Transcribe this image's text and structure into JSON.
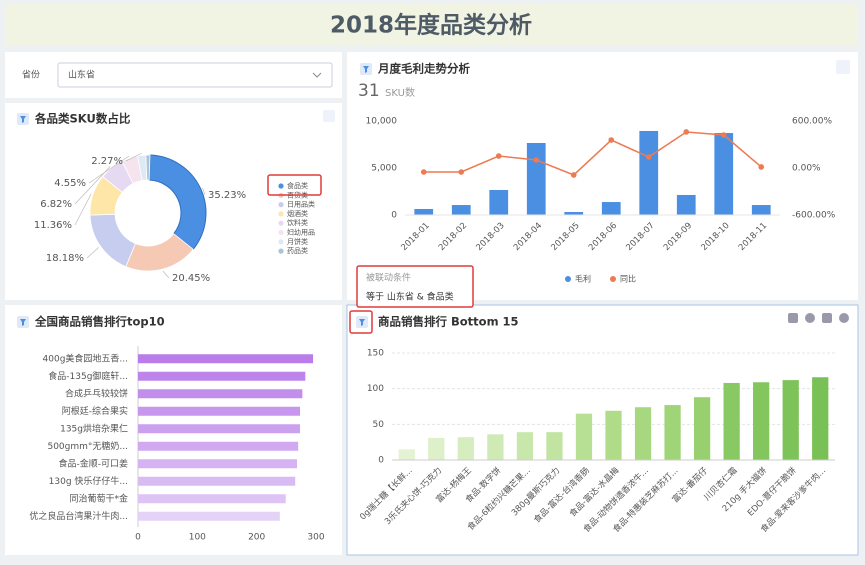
{
  "header": {
    "title": "2018年度品类分析"
  },
  "filter": {
    "label": "省份",
    "value": "山东省"
  },
  "kpi": {
    "value": "31",
    "label": "SKU数"
  },
  "linkage": {
    "title": "被联动条件",
    "text": "等于 山东省 & 食品类"
  },
  "chart_data": [
    {
      "type": "pie",
      "title": "各品类SKU数占比",
      "categories": [
        "食品类",
        "百货类",
        "日用品类",
        "烟酒类",
        "饮料类",
        "妇幼用品",
        "月饼类",
        "药品类"
      ],
      "values": [
        35.23,
        20.45,
        18.18,
        11.36,
        6.82,
        4.55,
        2.27,
        1.14
      ],
      "value_labels": [
        "35.23%",
        "20.45%",
        "18.18%",
        "11.36%",
        "6.82%",
        "4.55%",
        "2.27%",
        null
      ],
      "colors": [
        "#4a8fe2",
        "#f6c9b5",
        "#c6cdef",
        "#fde6a8",
        "#e6daf3",
        "#f5e4ee",
        "#dde9f5",
        "#a9c5d7"
      ]
    },
    {
      "type": "bar",
      "title": "月度毛利走势分析",
      "categories": [
        "2018-01",
        "2018-02",
        "2018-03",
        "2018-04",
        "2018-05",
        "2018-06",
        "2018-07",
        "2018-09",
        "2018-10",
        "2018-11"
      ],
      "series": [
        {
          "name": "毛利",
          "color": "#4a8fe2",
          "values": [
            640,
            1060,
            2660,
            7660,
            320,
            1380,
            8940,
            2130,
            8720,
            1060
          ]
        },
        {
          "name": "同比",
          "color": "#ec7a52",
          "type": "line",
          "axis": "y2",
          "values": [
            -51,
            -51,
            153,
            102,
            -89,
            357,
            140,
            460,
            421,
            13
          ]
        }
      ],
      "ylim": [
        0,
        10000
      ],
      "yticks": [
        0,
        {
          "value": 5000,
          "label": "5,000"
        },
        {
          "value": 10000,
          "label": "10,000"
        }
      ],
      "y2lim": [
        -600,
        600
      ],
      "y2ticks": [
        {
          "value": -600,
          "label": "-600.00%"
        },
        {
          "value": 0,
          "label": "0.00%"
        },
        {
          "value": 600,
          "label": "600.00%"
        }
      ],
      "grid": false
    },
    {
      "type": "hbar",
      "title": "全国商品销售排行top10",
      "categories": [
        "400g美食园地五香...",
        "食品-135g御庭轩...",
        "合成乒乓较较饼",
        "阿根廷-综合果实",
        "135g烘培杂果仁",
        "500gmm°无糖奶...",
        "食品-金顺-可口姜",
        "130g 快乐仔仔牛...",
        "同治葡萄干*金",
        "优之良品台湾果汁牛肉..."
      ],
      "values": [
        295,
        282,
        277,
        273,
        273,
        270,
        268,
        265,
        249,
        239
      ],
      "colors": [
        "#b97ce9",
        "#bd85eb",
        "#c28eec",
        "#c797ee",
        "#cba0ef",
        "#d0a9f1",
        "#d5b2f2",
        "#d9bbf3",
        "#dec4f5",
        "#e4d2f7"
      ],
      "xlim": [
        0,
        300
      ],
      "xticks": [
        0,
        100,
        200,
        300
      ]
    },
    {
      "type": "bar",
      "title": "商品销售排行 Bottom 15",
      "categories": [
        "0g瑞士糖【长鲜...",
        "3乐氏夹心饼-巧克力",
        "富达-杨梅王",
        "食品-数字饼",
        "食品-6粒约兴糖芒果...",
        "380g曼斯巧克力",
        "食品-富达-台湾香肠",
        "食品-富达-水晶梅",
        "食品-动物饼遗香浓牛...",
        "食品-特惠装芝麻苏打...",
        "富达-番茄仔",
        "川贝杏仁霜",
        "210g 手大福饼",
        "EDO-薏仔干脆饼",
        "食品-爱来客沙爹牛肉..."
      ],
      "values": [
        15,
        31,
        32,
        36,
        39,
        39,
        65,
        69,
        74,
        77,
        88,
        108,
        109,
        112,
        116
      ],
      "colors": [
        "#e4f3d3",
        "#ddf0c9",
        "#d6edbf",
        "#cfeab5",
        "#c8e7ab",
        "#c1e4a1",
        "#b8e095",
        "#b0dc8a",
        "#a7d880",
        "#a0d478",
        "#98d070",
        "#88c963",
        "#83c65e",
        "#7ec35a",
        "#79c056"
      ],
      "ylim": [
        0,
        150
      ],
      "yticks": [
        0,
        50,
        100,
        150
      ],
      "grid": true
    }
  ]
}
